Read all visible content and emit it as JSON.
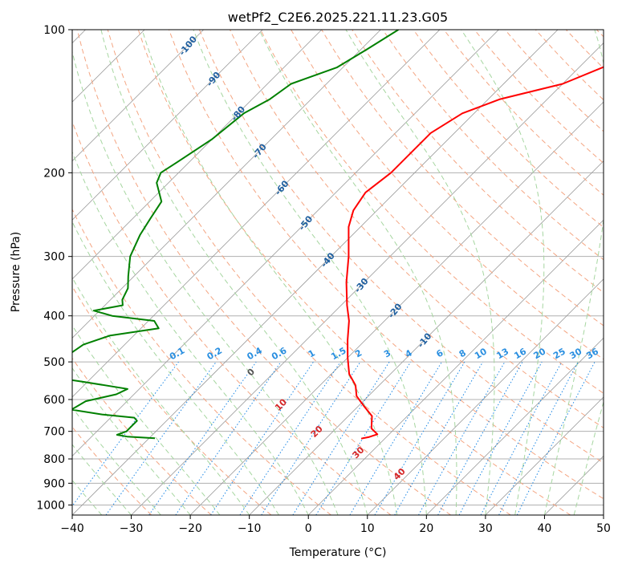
{
  "chart_data": {
    "type": "line",
    "title": "wetPf2_C2E6.2025.221.11.23.G05",
    "xlabel": "Temperature (°C)",
    "ylabel": "Pressure (hPa)",
    "xlim": [
      -40,
      50
    ],
    "ylim": [
      1050,
      100
    ],
    "y_scale": "log",
    "grid": true,
    "x_ticks": [
      -40,
      -30,
      -20,
      -10,
      0,
      10,
      20,
      30,
      40,
      50
    ],
    "y_ticks": [
      100,
      200,
      300,
      400,
      500,
      600,
      700,
      800,
      900,
      1000
    ],
    "skew_t": true,
    "series": [
      {
        "color": "#ff0000",
        "points": [
          {
            "p": 100,
            "t": -19
          },
          {
            "p": 110,
            "t": -23
          },
          {
            "p": 120,
            "t": -26
          },
          {
            "p": 130,
            "t": -30
          },
          {
            "p": 140,
            "t": -38
          },
          {
            "p": 150,
            "t": -42
          },
          {
            "p": 165,
            "t": -44
          },
          {
            "p": 180,
            "t": -44
          },
          {
            "p": 200,
            "t": -44
          },
          {
            "p": 220,
            "t": -45
          },
          {
            "p": 240,
            "t": -44
          },
          {
            "p": 260,
            "t": -42
          },
          {
            "p": 300,
            "t": -37
          },
          {
            "p": 340,
            "t": -33
          },
          {
            "p": 380,
            "t": -29
          },
          {
            "p": 410,
            "t": -26
          },
          {
            "p": 450,
            "t": -23
          },
          {
            "p": 490,
            "t": -20
          },
          {
            "p": 530,
            "t": -17
          },
          {
            "p": 560,
            "t": -14
          },
          {
            "p": 590,
            "t": -12
          },
          {
            "p": 620,
            "t": -9
          },
          {
            "p": 650,
            "t": -6
          },
          {
            "p": 690,
            "t": -4
          },
          {
            "p": 710,
            "t": -2
          },
          {
            "p": 720,
            "t": -3
          },
          {
            "p": 725,
            "t": -4
          }
        ]
      },
      {
        "color": "#008000",
        "points": [
          {
            "p": 100,
            "t": -67
          },
          {
            "p": 110,
            "t": -69
          },
          {
            "p": 120,
            "t": -71
          },
          {
            "p": 130,
            "t": -76
          },
          {
            "p": 140,
            "t": -77
          },
          {
            "p": 150,
            "t": -79
          },
          {
            "p": 170,
            "t": -80
          },
          {
            "p": 190,
            "t": -82
          },
          {
            "p": 200,
            "t": -83
          },
          {
            "p": 210,
            "t": -82
          },
          {
            "p": 230,
            "t": -78
          },
          {
            "p": 250,
            "t": -77
          },
          {
            "p": 270,
            "t": -76
          },
          {
            "p": 300,
            "t": -74
          },
          {
            "p": 330,
            "t": -71
          },
          {
            "p": 350,
            "t": -69
          },
          {
            "p": 370,
            "t": -68
          },
          {
            "p": 380,
            "t": -67
          },
          {
            "p": 390,
            "t": -71
          },
          {
            "p": 400,
            "t": -67
          },
          {
            "p": 410,
            "t": -59
          },
          {
            "p": 425,
            "t": -57
          },
          {
            "p": 440,
            "t": -64
          },
          {
            "p": 460,
            "t": -67
          },
          {
            "p": 490,
            "t": -68
          },
          {
            "p": 520,
            "t": -68
          },
          {
            "p": 530,
            "t": -71
          },
          {
            "p": 550,
            "t": -61
          },
          {
            "p": 570,
            "t": -52
          },
          {
            "p": 585,
            "t": -53
          },
          {
            "p": 605,
            "t": -57
          },
          {
            "p": 630,
            "t": -58
          },
          {
            "p": 645,
            "t": -52
          },
          {
            "p": 655,
            "t": -46
          },
          {
            "p": 665,
            "t": -45
          },
          {
            "p": 680,
            "t": -45
          },
          {
            "p": 700,
            "t": -45
          },
          {
            "p": 712,
            "t": -46
          },
          {
            "p": 718,
            "t": -44
          },
          {
            "p": 724,
            "t": -39
          }
        ]
      }
    ],
    "dry_adiabat_labels": [
      "-100",
      "-90",
      "-80",
      "-70",
      "-60",
      "-50",
      "-40",
      "-30",
      "-20",
      "-10"
    ],
    "moist_adiabat_labels": [
      "0",
      "10",
      "20",
      "30",
      "40"
    ],
    "mixing_ratio_labels": [
      "0.1",
      "0.2",
      "0.4",
      "0.6",
      "1",
      "1.5",
      "2",
      "3",
      "4",
      "6",
      "8",
      "10",
      "13",
      "16",
      "20",
      "25",
      "30",
      "36"
    ],
    "colors": {
      "temperature": "#ff0000",
      "dewpoint": "#008000",
      "grid": "#b0b0b0",
      "isotherm": "#9a9a9a",
      "dry_adiabat": "#f4a582",
      "moist_adiabat": "#a6d6a0",
      "mixing_ratio": "#1e88e5",
      "dry_label": "#1f5f9f",
      "moist_label_neg": "#555555",
      "moist_label_pos": "#d62728",
      "mixing_label": "#2a8fe0"
    }
  }
}
